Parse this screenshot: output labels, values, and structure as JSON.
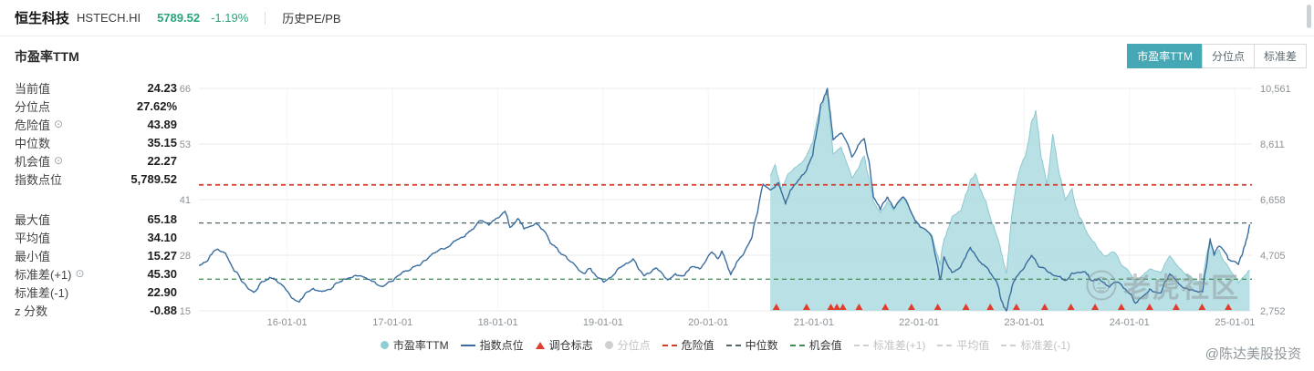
{
  "topbar": {
    "name": "恒生科技",
    "code": "HSTECH.HI",
    "price": "5789.52",
    "change": "-1.19%",
    "menu": "历史PE/PB"
  },
  "section": {
    "title": "市盈率TTM",
    "view_tabs": [
      {
        "key": "pe-ttm",
        "label": "市盈率TTM",
        "active": true
      },
      {
        "key": "percentile",
        "label": "分位点",
        "active": false
      },
      {
        "key": "stddev",
        "label": "标准差",
        "active": false
      }
    ]
  },
  "stats": [
    {
      "label": "当前值",
      "value": "24.23"
    },
    {
      "label": "分位点",
      "value": "27.62%"
    },
    {
      "label": "危险值",
      "value": "43.89",
      "gear": true
    },
    {
      "label": "中位数",
      "value": "35.15"
    },
    {
      "label": "机会值",
      "value": "22.27",
      "gear": true
    },
    {
      "label": "指数点位",
      "value": "5,789.52"
    },
    {
      "label": "最大值",
      "value": "65.18",
      "gap": true
    },
    {
      "label": "平均值",
      "value": "34.10"
    },
    {
      "label": "最小值",
      "value": "15.27"
    },
    {
      "label": "标准差(+1)",
      "value": "45.30",
      "gear": true
    },
    {
      "label": "标准差(-1)",
      "value": "22.90"
    },
    {
      "label": "z 分数",
      "value": "-0.88"
    }
  ],
  "colors": {
    "accent_teal": "#46a8b5",
    "price_green": "#2aa57b",
    "pe_area_fill": "#b3dde2",
    "pe_area_stroke": "#8cc9d0",
    "index_line": "#3a6d9e",
    "danger_red": "#d43c2c",
    "median_gray": "#54646a",
    "opportunity_green": "#3e8e50",
    "marker_red": "#e23c2d"
  },
  "legend": [
    {
      "label": "市盈率TTM",
      "swatch": "dot",
      "color": "#8ecdd4",
      "active": true
    },
    {
      "label": "指数点位",
      "swatch": "line",
      "color": "#3a6d9e",
      "active": true
    },
    {
      "label": "调仓标志",
      "swatch": "triangle",
      "color": "#e23c2d",
      "active": true
    },
    {
      "label": "分位点",
      "swatch": "dot",
      "color": "#cfcfcf",
      "active": false
    },
    {
      "label": "危险值",
      "swatch": "dash",
      "color": "#d43c2c",
      "active": true
    },
    {
      "label": "中位数",
      "swatch": "dash",
      "color": "#54646a",
      "active": true
    },
    {
      "label": "机会值",
      "swatch": "dash",
      "color": "#3e8e50",
      "active": true
    },
    {
      "label": "标准差(+1)",
      "swatch": "dash",
      "color": "#cfcfcf",
      "active": false
    },
    {
      "label": "平均值",
      "swatch": "dash",
      "color": "#cfcfcf",
      "active": false
    },
    {
      "label": "标准差(-1)",
      "swatch": "dash",
      "color": "#cfcfcf",
      "active": false
    }
  ],
  "watermark": {
    "community": "老虎社区",
    "handle": "@陈达美股投资"
  },
  "chart_data": {
    "type": "line",
    "title": "市盈率TTM",
    "x_domain": [
      "2015-03-01",
      "2025-03-01"
    ],
    "x_ticks": [
      {
        "label": "16-01-01",
        "date": "2016-01-01"
      },
      {
        "label": "17-01-01",
        "date": "2017-01-01"
      },
      {
        "label": "18-01-01",
        "date": "2018-01-01"
      },
      {
        "label": "19-01-01",
        "date": "2019-01-01"
      },
      {
        "label": "20-01-01",
        "date": "2020-01-01"
      },
      {
        "label": "21-01-01",
        "date": "2021-01-01"
      },
      {
        "label": "22-01-01",
        "date": "2022-01-01"
      },
      {
        "label": "23-01-01",
        "date": "2023-01-01"
      },
      {
        "label": "24-01-01",
        "date": "2024-01-01"
      },
      {
        "label": "25-01-01",
        "date": "2025-01-01"
      }
    ],
    "left_axis": {
      "name": "市盈率TTM",
      "range": [
        15,
        66
      ],
      "tick_labels": [
        "66",
        "53",
        "41",
        "28",
        "15"
      ]
    },
    "right_axis": {
      "name": "指数点位",
      "range": [
        2752,
        10561
      ],
      "tick_labels": [
        "10,561",
        "8,611",
        "6,658",
        "4,705",
        "2,752"
      ]
    },
    "thresholds": [
      {
        "name": "危险值",
        "value": 43.89,
        "color": "#d43c2c"
      },
      {
        "name": "中位数",
        "value": 35.15,
        "color": "#54646a"
      },
      {
        "name": "机会值",
        "value": 22.27,
        "color": "#3e8e50"
      }
    ],
    "series": [
      {
        "name": "市盈率TTM",
        "axis": "left",
        "type": "area",
        "fill": "#b3dde2",
        "stroke": "#8cc9d0",
        "points": [
          [
            "2020-08-03",
            46.0
          ],
          [
            "2020-08-20",
            48.5
          ],
          [
            "2020-09-10",
            43.0
          ],
          [
            "2020-10-05",
            46.5
          ],
          [
            "2020-11-02",
            48.0
          ],
          [
            "2020-12-01",
            50.0
          ],
          [
            "2020-12-28",
            53.5
          ],
          [
            "2021-01-25",
            61.5
          ],
          [
            "2021-02-17",
            65.18
          ],
          [
            "2021-03-09",
            51.0
          ],
          [
            "2021-04-06",
            52.5
          ],
          [
            "2021-05-13",
            45.5
          ],
          [
            "2021-06-25",
            50.5
          ],
          [
            "2021-07-27",
            40.0
          ],
          [
            "2021-08-20",
            37.5
          ],
          [
            "2021-09-13",
            40.0
          ],
          [
            "2021-10-06",
            38.0
          ],
          [
            "2021-11-08",
            41.0
          ],
          [
            "2021-12-13",
            36.5
          ],
          [
            "2022-01-04",
            34.5
          ],
          [
            "2022-02-14",
            32.5
          ],
          [
            "2022-03-15",
            25.5
          ],
          [
            "2022-03-29",
            31.5
          ],
          [
            "2022-04-25",
            36.5
          ],
          [
            "2022-05-26",
            38.0
          ],
          [
            "2022-06-28",
            45.0
          ],
          [
            "2022-07-15",
            46.5
          ],
          [
            "2022-08-22",
            40.0
          ],
          [
            "2022-09-26",
            32.5
          ],
          [
            "2022-10-31",
            23.5
          ],
          [
            "2022-11-14",
            33.5
          ],
          [
            "2022-12-05",
            44.5
          ],
          [
            "2023-01-05",
            50.5
          ],
          [
            "2023-01-27",
            58.5
          ],
          [
            "2023-02-10",
            61.0
          ],
          [
            "2023-03-01",
            50.0
          ],
          [
            "2023-03-20",
            44.0
          ],
          [
            "2023-04-10",
            55.5
          ],
          [
            "2023-05-02",
            46.5
          ],
          [
            "2023-05-24",
            40.5
          ],
          [
            "2023-06-16",
            43.0
          ],
          [
            "2023-07-10",
            36.5
          ],
          [
            "2023-08-07",
            33.0
          ],
          [
            "2023-09-04",
            30.5
          ],
          [
            "2023-10-09",
            27.5
          ],
          [
            "2023-11-06",
            28.5
          ],
          [
            "2023-12-04",
            25.5
          ],
          [
            "2024-01-22",
            21.8
          ],
          [
            "2024-02-19",
            23.2
          ],
          [
            "2024-03-11",
            24.6
          ],
          [
            "2024-04-19",
            23.8
          ],
          [
            "2024-05-20",
            27.6
          ],
          [
            "2024-06-17",
            25.2
          ],
          [
            "2024-07-22",
            23.2
          ],
          [
            "2024-08-12",
            22.0
          ],
          [
            "2024-09-11",
            21.6
          ],
          [
            "2024-10-07",
            31.2
          ],
          [
            "2024-10-21",
            27.8
          ],
          [
            "2024-11-07",
            29.0
          ],
          [
            "2024-12-09",
            25.0
          ],
          [
            "2025-01-13",
            21.4
          ],
          [
            "2025-01-27",
            22.6
          ],
          [
            "2025-02-12",
            23.5
          ],
          [
            "2025-02-21",
            24.23
          ]
        ]
      },
      {
        "name": "指数点位",
        "axis": "right",
        "type": "line",
        "stroke": "#3a6d9e",
        "points": [
          [
            "2015-03-01",
            4350
          ],
          [
            "2015-04-01",
            4520
          ],
          [
            "2015-05-05",
            4920
          ],
          [
            "2015-06-01",
            4780
          ],
          [
            "2015-07-01",
            4150
          ],
          [
            "2015-08-01",
            3750
          ],
          [
            "2015-09-07",
            3400
          ],
          [
            "2015-10-05",
            3780
          ],
          [
            "2015-11-02",
            3930
          ],
          [
            "2015-12-01",
            3740
          ],
          [
            "2016-01-04",
            3420
          ],
          [
            "2016-02-12",
            3060
          ],
          [
            "2016-03-01",
            3320
          ],
          [
            "2016-04-01",
            3540
          ],
          [
            "2016-05-02",
            3430
          ],
          [
            "2016-06-01",
            3510
          ],
          [
            "2016-07-01",
            3760
          ],
          [
            "2016-08-01",
            3900
          ],
          [
            "2016-09-09",
            3980
          ],
          [
            "2016-10-03",
            3890
          ],
          [
            "2016-11-01",
            3760
          ],
          [
            "2016-12-01",
            3620
          ],
          [
            "2017-01-03",
            3800
          ],
          [
            "2017-02-01",
            4080
          ],
          [
            "2017-03-01",
            4180
          ],
          [
            "2017-04-03",
            4340
          ],
          [
            "2017-05-02",
            4580
          ],
          [
            "2017-06-01",
            4820
          ],
          [
            "2017-07-03",
            4940
          ],
          [
            "2017-08-01",
            5200
          ],
          [
            "2017-09-01",
            5330
          ],
          [
            "2017-10-02",
            5600
          ],
          [
            "2017-11-01",
            5920
          ],
          [
            "2017-12-01",
            5760
          ],
          [
            "2018-01-02",
            6020
          ],
          [
            "2018-01-26",
            6250
          ],
          [
            "2018-02-12",
            5680
          ],
          [
            "2018-03-12",
            5990
          ],
          [
            "2018-04-02",
            5630
          ],
          [
            "2018-05-14",
            5840
          ],
          [
            "2018-06-19",
            5430
          ],
          [
            "2018-07-02",
            5120
          ],
          [
            "2018-08-01",
            4820
          ],
          [
            "2018-09-03",
            4540
          ],
          [
            "2018-10-30",
            4060
          ],
          [
            "2018-11-19",
            4240
          ],
          [
            "2018-12-24",
            3880
          ],
          [
            "2019-01-03",
            3760
          ],
          [
            "2019-02-25",
            4260
          ],
          [
            "2019-04-15",
            4580
          ],
          [
            "2019-05-23",
            3980
          ],
          [
            "2019-06-17",
            4120
          ],
          [
            "2019-07-02",
            4260
          ],
          [
            "2019-08-13",
            3840
          ],
          [
            "2019-09-09",
            4060
          ],
          [
            "2019-10-08",
            3980
          ],
          [
            "2019-11-05",
            4300
          ],
          [
            "2019-12-02",
            4220
          ],
          [
            "2020-01-14",
            4820
          ],
          [
            "2020-02-03",
            4580
          ],
          [
            "2020-02-17",
            4850
          ],
          [
            "2020-03-19",
            4020
          ],
          [
            "2020-04-06",
            4400
          ],
          [
            "2020-05-04",
            4780
          ],
          [
            "2020-06-01",
            5350
          ],
          [
            "2020-07-09",
            7200
          ],
          [
            "2020-08-03",
            7000
          ],
          [
            "2020-09-01",
            7250
          ],
          [
            "2020-09-25",
            6500
          ],
          [
            "2020-10-12",
            7000
          ],
          [
            "2020-11-09",
            7350
          ],
          [
            "2020-12-01",
            7600
          ],
          [
            "2020-12-28",
            8200
          ],
          [
            "2021-01-25",
            10000
          ],
          [
            "2021-02-17",
            10561
          ],
          [
            "2021-03-09",
            8750
          ],
          [
            "2021-04-06",
            9000
          ],
          [
            "2021-05-13",
            8150
          ],
          [
            "2021-06-25",
            8800
          ],
          [
            "2021-07-27",
            6750
          ],
          [
            "2021-08-20",
            6300
          ],
          [
            "2021-09-13",
            6750
          ],
          [
            "2021-10-06",
            6350
          ],
          [
            "2021-11-08",
            6750
          ],
          [
            "2021-12-13",
            6050
          ],
          [
            "2022-01-04",
            5700
          ],
          [
            "2022-02-14",
            5350
          ],
          [
            "2022-03-15",
            3850
          ],
          [
            "2022-03-29",
            4650
          ],
          [
            "2022-04-25",
            4100
          ],
          [
            "2022-05-26",
            4300
          ],
          [
            "2022-06-28",
            4980
          ],
          [
            "2022-07-25",
            4550
          ],
          [
            "2022-08-22",
            4300
          ],
          [
            "2022-09-26",
            3800
          ],
          [
            "2022-10-31",
            2752
          ],
          [
            "2022-11-14",
            3350
          ],
          [
            "2022-12-05",
            3950
          ],
          [
            "2023-01-27",
            4700
          ],
          [
            "2023-02-20",
            4300
          ],
          [
            "2023-03-20",
            4150
          ],
          [
            "2023-04-17",
            3980
          ],
          [
            "2023-05-24",
            3820
          ],
          [
            "2023-06-16",
            4080
          ],
          [
            "2023-07-31",
            4120
          ],
          [
            "2023-08-21",
            3820
          ],
          [
            "2023-09-18",
            3880
          ],
          [
            "2023-10-23",
            3580
          ],
          [
            "2023-11-20",
            3760
          ],
          [
            "2023-12-18",
            3520
          ],
          [
            "2024-01-22",
            3020
          ],
          [
            "2024-02-19",
            3280
          ],
          [
            "2024-03-11",
            3520
          ],
          [
            "2024-04-19",
            3380
          ],
          [
            "2024-05-20",
            4050
          ],
          [
            "2024-06-17",
            3750
          ],
          [
            "2024-07-22",
            3520
          ],
          [
            "2024-08-12",
            3460
          ],
          [
            "2024-09-11",
            3420
          ],
          [
            "2024-10-07",
            5280
          ],
          [
            "2024-10-21",
            4700
          ],
          [
            "2024-11-07",
            5020
          ],
          [
            "2024-12-09",
            4550
          ],
          [
            "2025-01-13",
            4380
          ],
          [
            "2025-01-27",
            4750
          ],
          [
            "2025-02-12",
            5300
          ],
          [
            "2025-02-21",
            5789.52
          ]
        ]
      }
    ],
    "rebalance_markers": {
      "name": "调仓标志",
      "color": "#e23c2d",
      "dates": [
        "2020-08-24",
        "2020-12-07",
        "2021-03-01",
        "2021-03-22",
        "2021-04-12",
        "2021-06-07",
        "2021-09-06",
        "2021-12-06",
        "2022-03-07",
        "2022-06-13",
        "2022-09-05",
        "2022-12-05",
        "2023-03-13",
        "2023-06-12",
        "2023-09-04",
        "2023-12-04",
        "2024-03-11",
        "2024-06-11",
        "2024-09-09",
        "2024-12-09"
      ]
    }
  }
}
